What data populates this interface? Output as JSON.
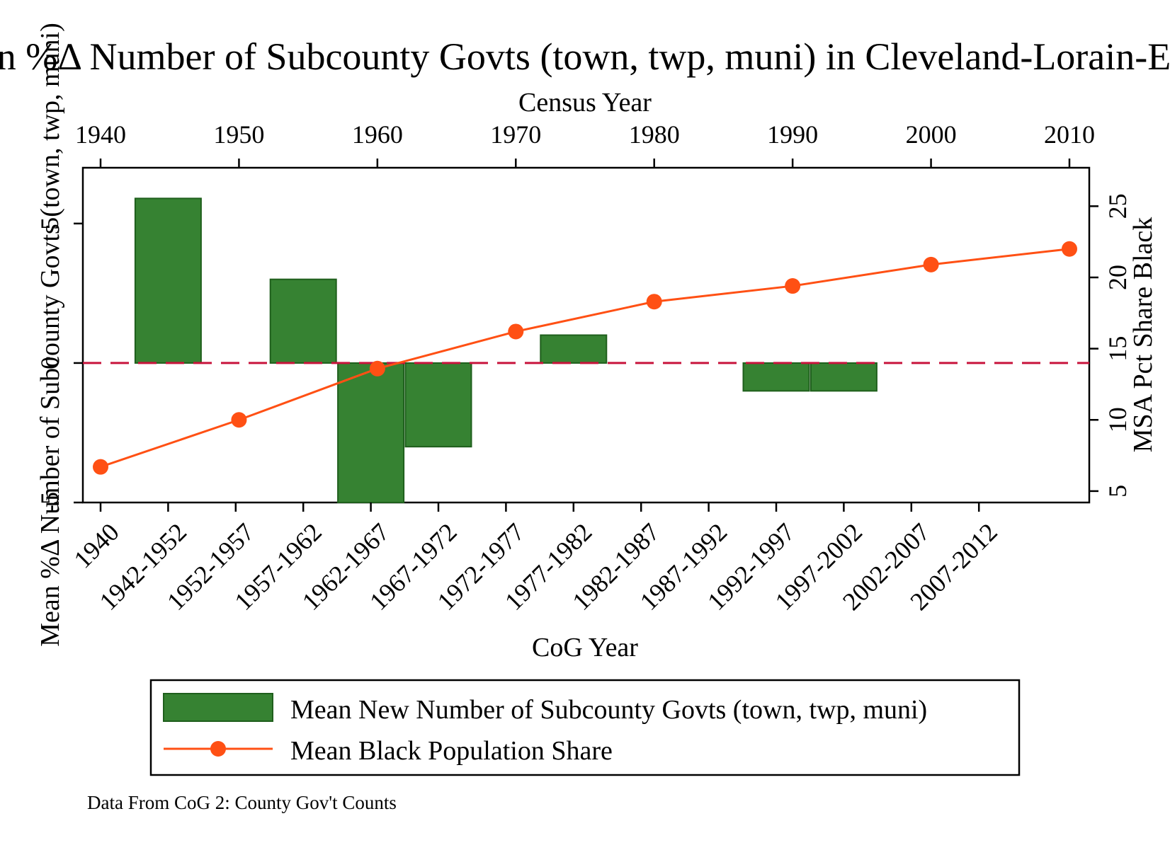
{
  "chart_data": {
    "type": "bar+line",
    "title": "Mean %Δ Number of Subcounty Govts (town, twp, muni) in Cleveland-Lorain-Elyria",
    "left_axis_label": "Mean %Δ Number of Subcounty Govts (town, twp, muni)",
    "left_ylim": [
      -5,
      7
    ],
    "left_yticks": [
      "-5",
      "0",
      "5"
    ],
    "right_axis_label": "MSA Pct Share Black",
    "right_ylim": [
      4.2,
      27.7
    ],
    "right_yticks": [
      "5",
      "10",
      "15",
      "20",
      "25"
    ],
    "top_axis_label": "Census Year",
    "top_xlim": [
      1940,
      2010
    ],
    "top_xticks": [
      "1940",
      "1950",
      "1960",
      "1970",
      "1980",
      "1990",
      "2000",
      "2010"
    ],
    "bottom_axis_label": "CoG Year",
    "bottom_categories": [
      "1940",
      "1942-1952",
      "1952-1957",
      "1957-1962",
      "1962-1967",
      "1967-1972",
      "1972-1977",
      "1977-1982",
      "1982-1987",
      "1987-1992",
      "1992-1997",
      "1997-2002",
      "2002-2007",
      "2007-2012"
    ],
    "reference_line": 0,
    "bars": {
      "name": "Mean New Number of Subcounty Govts (town, twp, muni)",
      "color": "#368232",
      "edge_color": "#1f5f1c",
      "values": [
        null,
        5.9,
        null,
        3.0,
        -5.0,
        -3.0,
        null,
        1.0,
        null,
        null,
        -1.0,
        -1.0,
        null,
        null
      ]
    },
    "line": {
      "name": "Mean Black Population Share",
      "color": "#ff5014",
      "x": [
        1940,
        1950,
        1960,
        1970,
        1980,
        1990,
        2000,
        2010
      ],
      "y": [
        6.7,
        10.0,
        13.6,
        16.2,
        18.3,
        19.4,
        20.9,
        22.0
      ]
    },
    "reference_line_color": "#c8143c",
    "legend_position": "bottom",
    "note": "Data From CoG 2: County Gov't Counts"
  }
}
